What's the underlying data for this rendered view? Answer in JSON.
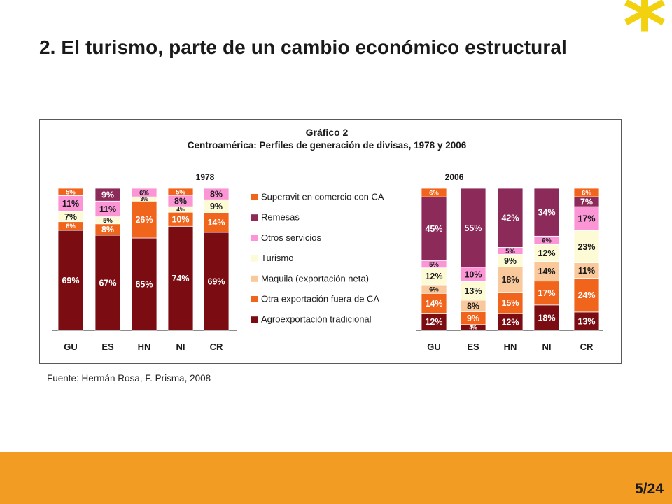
{
  "slide": {
    "title": "2. El turismo, parte de un cambio económico estructural",
    "source": "Fuente: Hermán Rosa, F. Prisma, 2008",
    "page": "5/24",
    "logo_glyph": "*",
    "colors": {
      "footer": "#f39c23",
      "logo": "#f2d20f"
    }
  },
  "chart_data": {
    "type": "bar",
    "stacked": true,
    "percent": true,
    "title": "Gráfico 2",
    "subtitle": "Centroamérica: Perfiles de generación de divisas, 1978 y 2006",
    "ylim": [
      0,
      100
    ],
    "legend_position": "center",
    "series": [
      {
        "name": "Agroexportación tradicional",
        "color": "#7b0d12"
      },
      {
        "name": "Otra exportación fuera de CA",
        "color": "#f0641c"
      },
      {
        "name": "Maquila (exportación neta)",
        "color": "#f9c89b"
      },
      {
        "name": "Turismo",
        "color": "#fdfbd6"
      },
      {
        "name": "Otros servicios",
        "color": "#fb95d6"
      },
      {
        "name": "Remesas",
        "color": "#8c2a59"
      },
      {
        "name": "Superavit en comercio con CA",
        "color": "#f0641c"
      }
    ],
    "panels": [
      {
        "year": "1978",
        "categories": [
          "GU",
          "ES",
          "HN",
          "NI",
          "CR"
        ],
        "values": [
          [
            69,
            6,
            0,
            7,
            11,
            0,
            5
          ],
          [
            67,
            8,
            0,
            5,
            11,
            9,
            0
          ],
          [
            65,
            26,
            0,
            3,
            6,
            0,
            0
          ],
          [
            74,
            10,
            0,
            4,
            8,
            0,
            5
          ],
          [
            69,
            14,
            0,
            9,
            8,
            0,
            0
          ]
        ]
      },
      {
        "year": "2006",
        "categories": [
          "GU",
          "ES",
          "HN",
          "NI",
          "CR"
        ],
        "values": [
          [
            12,
            14,
            6,
            12,
            5,
            45,
            6
          ],
          [
            4,
            9,
            8,
            13,
            10,
            55,
            0
          ],
          [
            12,
            15,
            18,
            9,
            5,
            42,
            0
          ],
          [
            18,
            17,
            14,
            12,
            6,
            34,
            0
          ],
          [
            13,
            24,
            11,
            23,
            17,
            7,
            6
          ]
        ]
      }
    ]
  }
}
